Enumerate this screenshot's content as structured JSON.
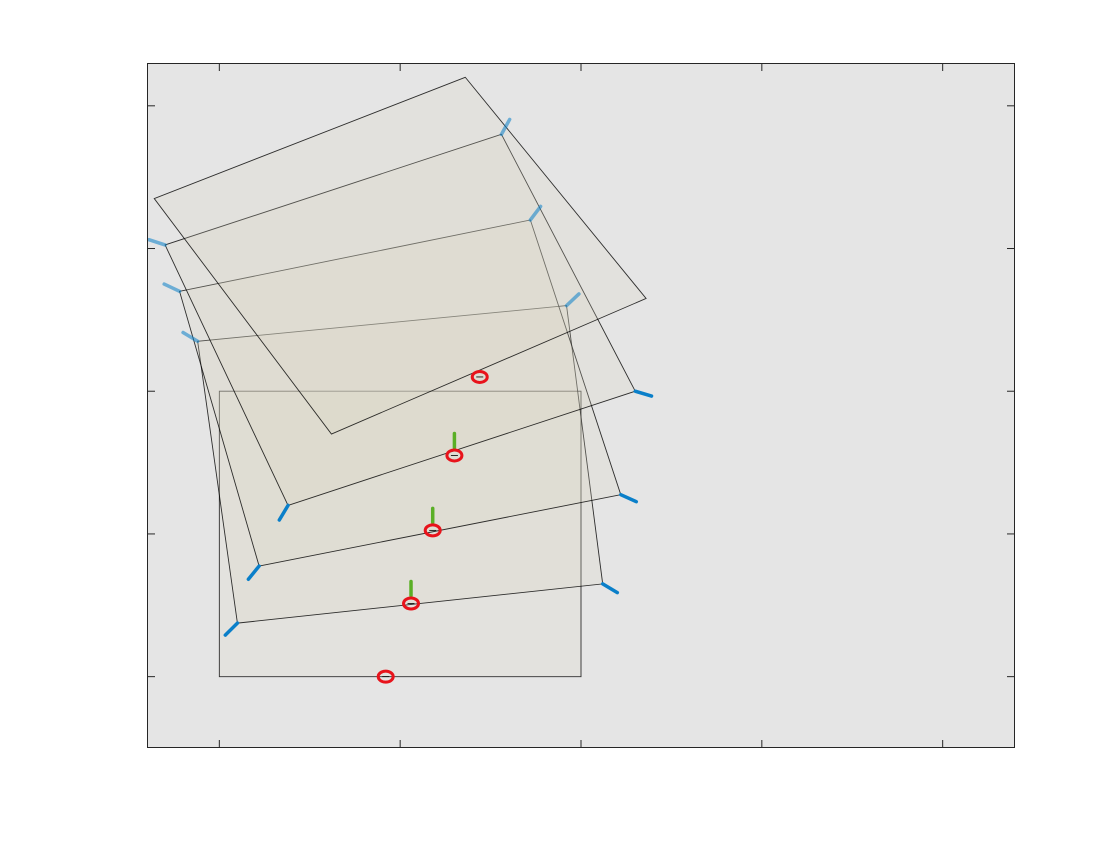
{
  "colors": {
    "figure_bg": "#ffffff",
    "axes_bg": "#e5e5e5",
    "panel_fill": "#dcd8c3",
    "panel_stroke": "#000000",
    "blue_marker": "#0a7fc9",
    "green_marker": "#5aaf26",
    "red_marker": "#e8131b"
  },
  "chart_data": {
    "type": "diagram",
    "title": "",
    "xlabel": "",
    "ylabel": "",
    "grid": false,
    "legend": "none",
    "xlim": [
      -7,
      17
    ],
    "ylim": [
      -2,
      17.2
    ],
    "xticks": [
      -5,
      0,
      5,
      10,
      15
    ],
    "yticks": [
      0,
      4,
      8,
      12,
      16
    ],
    "tick_labels_shown": false,
    "panels": [
      {
        "name": "panel-0",
        "corners": [
          [
            -5,
            0
          ],
          [
            5,
            0
          ],
          [
            5,
            8
          ],
          [
            -5,
            8
          ]
        ],
        "opacity": 0.18,
        "bottom_marker": [
          -0.4,
          0
        ],
        "corner_markers": false,
        "green_marker": false
      },
      {
        "name": "panel-1",
        "corners": [
          [
            -4.5,
            1.5
          ],
          [
            5.6,
            2.6
          ],
          [
            4.6,
            10.4
          ],
          [
            -5.6,
            9.4
          ]
        ],
        "opacity": 0.22,
        "bottom_marker": [
          0.3,
          2.05
        ],
        "corner_markers": true,
        "green_marker": true
      },
      {
        "name": "panel-2",
        "corners": [
          [
            -3.9,
            3.1
          ],
          [
            6.1,
            5.1
          ],
          [
            3.6,
            12.8
          ],
          [
            -6.1,
            10.8
          ]
        ],
        "opacity": 0.22,
        "bottom_marker": [
          0.9,
          4.1
        ],
        "corner_markers": true,
        "green_marker": true
      },
      {
        "name": "panel-3",
        "corners": [
          [
            -3.1,
            4.8
          ],
          [
            6.5,
            8.0
          ],
          [
            2.8,
            15.2
          ],
          [
            -6.5,
            12.1
          ]
        ],
        "opacity": 0.22,
        "bottom_marker": [
          1.5,
          6.2
        ],
        "corner_markers": true,
        "green_marker": true
      },
      {
        "name": "panel-4",
        "corners": [
          [
            -1.9,
            6.8
          ],
          [
            6.8,
            10.6
          ],
          [
            1.8,
            16.8
          ],
          [
            -6.8,
            13.4
          ]
        ],
        "opacity": 0.22,
        "bottom_marker": [
          2.2,
          8.4
        ],
        "corner_markers": false,
        "green_marker": false
      }
    ]
  }
}
